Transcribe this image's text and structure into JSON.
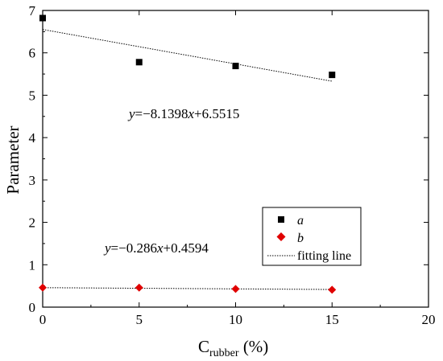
{
  "chart_data": {
    "type": "scatter",
    "xlabel": "C",
    "xlabel_subscript": "rubber",
    "xlabel_unit": " (%)",
    "ylabel": "Parameter",
    "xlim": [
      0,
      20
    ],
    "ylim": [
      0,
      7
    ],
    "xticks": [
      "0",
      "5",
      "10",
      "15",
      "20"
    ],
    "yticks": [
      "0",
      "1",
      "2",
      "3",
      "4",
      "5",
      "6",
      "7"
    ],
    "grid": false,
    "legend_position": "bottom-right",
    "series": [
      {
        "name": "a",
        "marker": "square",
        "color": "#000000",
        "x": [
          0,
          5,
          10,
          15
        ],
        "y": [
          6.82,
          5.78,
          5.69,
          5.48
        ],
        "fit": {
          "slope": -8.1398,
          "intercept": 6.5515,
          "x_range": [
            0,
            15
          ]
        },
        "equation": {
          "y": "y",
          "eq": "=−8.1398",
          "x": "x",
          "rest": "+6.5515"
        }
      },
      {
        "name": "b",
        "marker": "diamond",
        "color": "#e00000",
        "x": [
          0,
          5,
          10,
          15
        ],
        "y": [
          0.46,
          0.46,
          0.43,
          0.41
        ],
        "fit": {
          "slope": -0.286,
          "intercept": 0.4594,
          "x_range": [
            0,
            15
          ]
        },
        "equation": {
          "y": "y",
          "eq": "=−0.286",
          "x": "x",
          "rest": "+0.4594"
        }
      }
    ],
    "fit_legend_label": "fitting line"
  }
}
